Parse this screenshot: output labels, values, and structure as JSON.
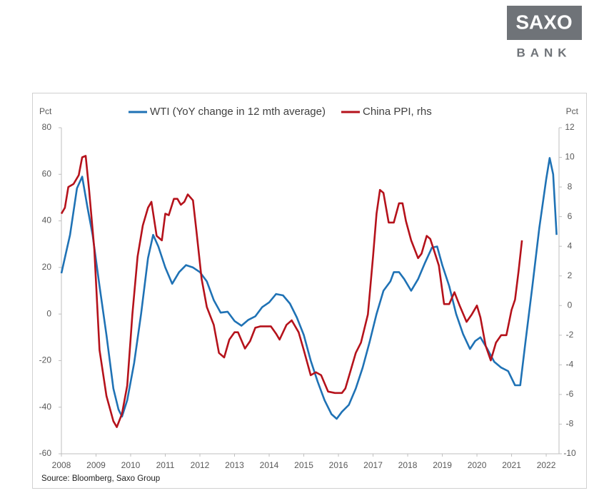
{
  "logo": {
    "top": "SAXO",
    "bottom": "BANK"
  },
  "chart_data": {
    "type": "line",
    "legend": "top",
    "ylabel": "Pct",
    "y2label": "Pct",
    "source": "Source: Bloomberg, Saxo Group",
    "xlim": [
      2008,
      2022.37
    ],
    "xticks": [
      2008,
      2009,
      2010,
      2011,
      2012,
      2013,
      2014,
      2015,
      2016,
      2017,
      2018,
      2019,
      2020,
      2021,
      2022
    ],
    "ylim": [
      -60,
      80
    ],
    "yticks": [
      -60,
      -40,
      -20,
      0,
      20,
      40,
      60,
      80
    ],
    "y2lim": [
      -10,
      12
    ],
    "y2ticks": [
      -10,
      -8,
      -6,
      -4,
      -2,
      0,
      2,
      4,
      6,
      8,
      10,
      12
    ],
    "series": [
      {
        "name": "WTI (YoY change in 12 mth average)",
        "color": "#1f72b5",
        "axis": "y",
        "x": [
          2008.0,
          2008.25,
          2008.45,
          2008.6,
          2008.75,
          2008.9,
          2009.1,
          2009.3,
          2009.5,
          2009.65,
          2009.75,
          2009.9,
          2010.1,
          2010.3,
          2010.5,
          2010.65,
          2010.8,
          2011.0,
          2011.2,
          2011.4,
          2011.6,
          2011.8,
          2012.0,
          2012.2,
          2012.4,
          2012.6,
          2012.8,
          2013.0,
          2013.2,
          2013.4,
          2013.6,
          2013.8,
          2014.0,
          2014.2,
          2014.4,
          2014.6,
          2014.8,
          2015.0,
          2015.2,
          2015.4,
          2015.6,
          2015.8,
          2015.95,
          2016.1,
          2016.3,
          2016.5,
          2016.7,
          2016.9,
          2017.1,
          2017.3,
          2017.5,
          2017.6,
          2017.75,
          2017.9,
          2018.1,
          2018.3,
          2018.5,
          2018.7,
          2018.85,
          2019.0,
          2019.2,
          2019.4,
          2019.6,
          2019.8,
          2019.95,
          2020.1,
          2020.3,
          2020.5,
          2020.7,
          2020.9,
          2021.1,
          2021.25,
          2021.4,
          2021.6,
          2021.8,
          2022.0,
          2022.1,
          2022.2,
          2022.3
        ],
        "values": [
          17.5,
          34,
          54,
          59,
          46,
          34,
          12,
          -9,
          -32,
          -41,
          -44,
          -37,
          -21,
          0,
          24,
          34,
          29,
          20,
          13,
          18,
          21,
          20,
          18,
          14,
          6,
          0.6,
          1,
          -3,
          -5,
          -2.5,
          -1,
          3,
          5,
          8.6,
          8,
          4.5,
          -1.5,
          -9,
          -20,
          -29,
          -37,
          -43,
          -45,
          -42,
          -39,
          -32,
          -23,
          -12,
          0,
          10,
          14,
          18,
          18,
          15,
          10,
          15,
          22,
          28.5,
          29,
          21,
          12,
          0,
          -8.6,
          -15,
          -11.6,
          -10,
          -15,
          -20.5,
          -23,
          -24.5,
          -30.6,
          -30.6,
          -12,
          12,
          37,
          58,
          67,
          60,
          34
        ]
      },
      {
        "name": "China PPI, rhs",
        "color": "#b5121b",
        "axis": "y2",
        "x": [
          2008.0,
          2008.1,
          2008.2,
          2008.35,
          2008.5,
          2008.6,
          2008.7,
          2008.8,
          2008.95,
          2009.1,
          2009.3,
          2009.5,
          2009.6,
          2009.75,
          2009.9,
          2010.05,
          2010.2,
          2010.35,
          2010.5,
          2010.6,
          2010.75,
          2010.9,
          2011.0,
          2011.1,
          2011.25,
          2011.35,
          2011.45,
          2011.55,
          2011.65,
          2011.8,
          2011.9,
          2012.05,
          2012.2,
          2012.4,
          2012.55,
          2012.7,
          2012.85,
          2013.0,
          2013.1,
          2013.3,
          2013.45,
          2013.6,
          2013.75,
          2013.9,
          2014.05,
          2014.2,
          2014.3,
          2014.5,
          2014.65,
          2014.85,
          2015.0,
          2015.2,
          2015.35,
          2015.5,
          2015.7,
          2015.9,
          2016.1,
          2016.2,
          2016.35,
          2016.5,
          2016.65,
          2016.85,
          2017.0,
          2017.1,
          2017.2,
          2017.3,
          2017.45,
          2017.6,
          2017.75,
          2017.85,
          2017.95,
          2018.1,
          2018.3,
          2018.4,
          2018.55,
          2018.65,
          2018.75,
          2018.9,
          2019.05,
          2019.2,
          2019.35,
          2019.5,
          2019.7,
          2019.85,
          2020.0,
          2020.1,
          2020.25,
          2020.4,
          2020.55,
          2020.7,
          2020.85,
          2021.0,
          2021.1,
          2021.2,
          2021.3
        ],
        "values": [
          6.2,
          6.6,
          8.0,
          8.2,
          8.8,
          10.0,
          10.1,
          7.8,
          3.8,
          -3.0,
          -6.1,
          -7.8,
          -8.2,
          -7.3,
          -5.4,
          -0.6,
          3.3,
          5.4,
          6.6,
          7.0,
          4.7,
          4.4,
          6.2,
          6.1,
          7.2,
          7.2,
          6.8,
          7.0,
          7.5,
          7.1,
          5.0,
          1.8,
          -0.1,
          -1.3,
          -3.2,
          -3.5,
          -2.3,
          -1.8,
          -1.8,
          -2.9,
          -2.4,
          -1.5,
          -1.4,
          -1.4,
          -1.4,
          -1.9,
          -2.3,
          -1.3,
          -1.0,
          -1.8,
          -3.0,
          -4.7,
          -4.5,
          -4.7,
          -5.8,
          -5.9,
          -5.9,
          -5.6,
          -4.4,
          -3.2,
          -2.5,
          -0.6,
          3.3,
          6.2,
          7.8,
          7.6,
          5.6,
          5.6,
          6.9,
          6.9,
          5.7,
          4.4,
          3.2,
          3.5,
          4.7,
          4.5,
          3.8,
          2.7,
          0.1,
          0.1,
          0.9,
          0.0,
          -1.1,
          -0.6,
          0.0,
          -0.8,
          -2.7,
          -3.7,
          -2.5,
          -2.0,
          -2.0,
          -0.3,
          0.4,
          2.3,
          4.4
        ]
      }
    ]
  }
}
